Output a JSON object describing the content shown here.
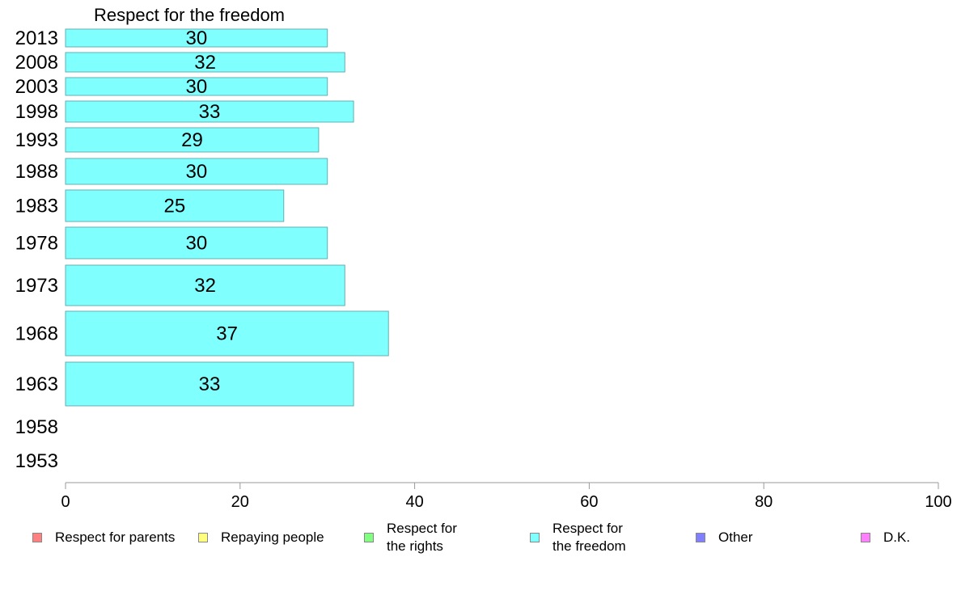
{
  "chart_data": {
    "type": "bar",
    "orientation": "horizontal",
    "title": "Respect for the freedom",
    "categories": [
      "2013",
      "2008",
      "2003",
      "1998",
      "1993",
      "1988",
      "1983",
      "1978",
      "1973",
      "1968",
      "1963",
      "1958",
      "1953"
    ],
    "series": [
      {
        "name": "Respect for the freedom",
        "values": [
          30,
          32,
          30,
          33,
          29,
          30,
          25,
          30,
          32,
          37,
          33,
          null,
          null
        ]
      }
    ],
    "xlim": [
      0,
      100
    ],
    "xticks": [
      0,
      20,
      40,
      60,
      80,
      100
    ],
    "bar_color": "#80ffff",
    "bar_border": "#5fb0b0",
    "axis_color": "#999999",
    "legend_position": "bottom",
    "legend": [
      {
        "label": "Respect for parents",
        "color": "#ff8080"
      },
      {
        "label": "Repaying people",
        "color": "#ffff80"
      },
      {
        "label": "Respect for\nthe rights",
        "color": "#80ff80"
      },
      {
        "label": "Respect for\nthe freedom",
        "color": "#80ffff"
      },
      {
        "label": "Other",
        "color": "#8080ff"
      },
      {
        "label": "D.K.",
        "color": "#ff80ff"
      }
    ]
  }
}
